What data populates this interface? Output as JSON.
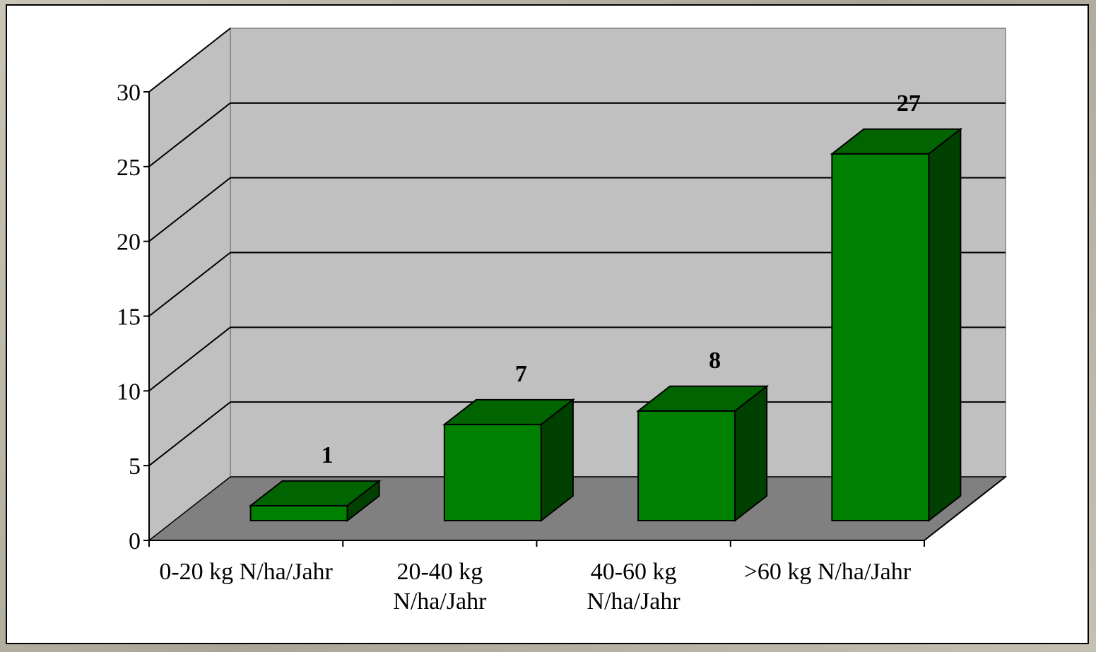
{
  "chart_data": {
    "type": "bar",
    "style": "3d-column",
    "categories": [
      [
        "0-20 kg N/ha/Jahr"
      ],
      [
        "20-40 kg",
        "N/ha/Jahr"
      ],
      [
        "40-60 kg",
        "N/ha/Jahr"
      ],
      [
        ">60 kg N/ha/Jahr"
      ]
    ],
    "values": [
      1,
      7,
      8,
      27
    ],
    "data_labels": [
      "1",
      "7",
      "8",
      "27"
    ],
    "ylim": [
      0,
      30
    ],
    "yticks": [
      "0",
      "5",
      "10",
      "15",
      "20",
      "25",
      "30"
    ],
    "grid": true,
    "legend": "none",
    "colors": {
      "bar_front": "#008000",
      "bar_top": "#006400",
      "bar_side": "#004000",
      "back_wall": "#c0c0c0",
      "floor": "#808080",
      "gridline": "#000000"
    }
  }
}
